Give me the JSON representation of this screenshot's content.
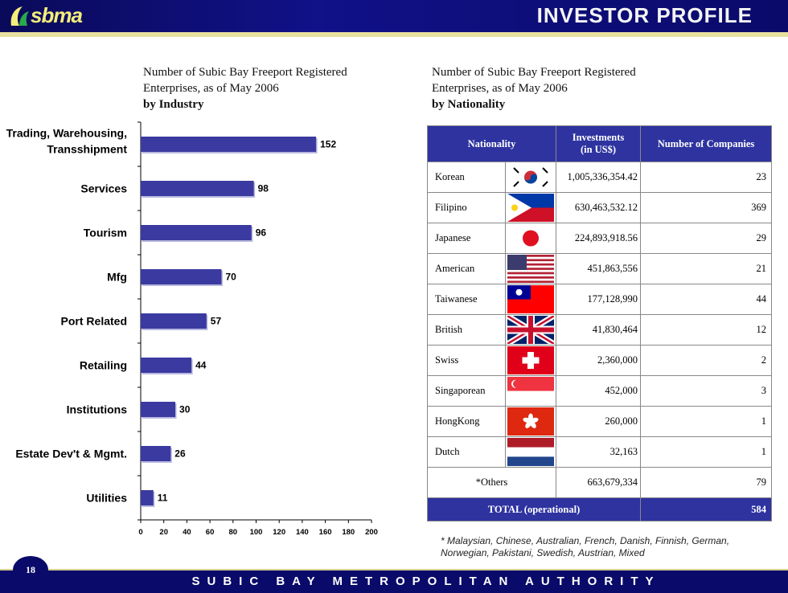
{
  "header": {
    "logo_text": "sbma",
    "title": "INVESTOR PROFILE",
    "accent_color": "#f4ee7a"
  },
  "left_panel": {
    "subtitle_line1": "Number of Subic Bay Freeport Registered",
    "subtitle_line2": "Enterprises, as of  May 2006",
    "subtitle_line3": "by Industry"
  },
  "right_panel": {
    "subtitle_line1": "Number of Subic Bay Freeport Registered",
    "subtitle_line2": "Enterprises, as of  May 2006",
    "subtitle_line3": "by Nationality"
  },
  "chart_data": {
    "type": "bar",
    "orientation": "horizontal",
    "categories": [
      "Trading, Warehousing, Transshipment",
      "Services",
      "Tourism",
      "Mfg",
      "Port Related",
      "Retailing",
      "Institutions",
      "Estate Dev't & Mgmt.",
      "Utilities"
    ],
    "category_lines": [
      [
        "Trading,  Warehousing,",
        "Transshipment"
      ],
      [
        "Services"
      ],
      [
        "Tourism"
      ],
      [
        "Mfg"
      ],
      [
        "Port  Related"
      ],
      [
        "Retailing"
      ],
      [
        "Institutions"
      ],
      [
        "Estate  Dev't  &  Mgmt."
      ],
      [
        "Utilities"
      ]
    ],
    "values": [
      152,
      98,
      96,
      70,
      57,
      44,
      30,
      26,
      11
    ],
    "xlim": [
      0,
      200
    ],
    "xticks": [
      0,
      20,
      40,
      60,
      80,
      100,
      120,
      140,
      160,
      180,
      200
    ],
    "bar_color": "#3a3aa0",
    "grid": false,
    "legend": "none"
  },
  "table": {
    "headers": {
      "nationality": "Nationality",
      "investments_line1": "Investments",
      "investments_line2": "(in US$)",
      "companies": "Number  of Companies"
    },
    "rows": [
      {
        "nationality": "Korean",
        "flag": "korea-flag",
        "investment": "1,005,336,354.42",
        "companies": "23"
      },
      {
        "nationality": "Filipino",
        "flag": "philippines-flag",
        "investment": "630,463,532.12",
        "companies": "369"
      },
      {
        "nationality": "Japanese",
        "flag": "japan-flag",
        "investment": "224,893,918.56",
        "companies": "29"
      },
      {
        "nationality": "American",
        "flag": "usa-flag",
        "investment": "451,863,556",
        "companies": "21"
      },
      {
        "nationality": "Taiwanese",
        "flag": "taiwan-flag",
        "investment": "177,128,990",
        "companies": "44"
      },
      {
        "nationality": "British",
        "flag": "uk-flag",
        "investment": "41,830,464",
        "companies": "12"
      },
      {
        "nationality": "Swiss",
        "flag": "swiss-flag",
        "investment": "2,360,000",
        "companies": "2"
      },
      {
        "nationality": "Singaporean",
        "flag": "singapore-flag",
        "investment": "452,000",
        "companies": "3"
      },
      {
        "nationality": "HongKong",
        "flag": "hongkong-flag",
        "investment": "260,000",
        "companies": "1"
      },
      {
        "nationality": "Dutch",
        "flag": "netherlands-flag",
        "investment": "32,163",
        "companies": "1"
      }
    ],
    "others": {
      "label": "*Others",
      "investment": "663,679,334",
      "companies": "79"
    },
    "total": {
      "label": "TOTAL (operational)",
      "companies": "584"
    },
    "header_color": "#2e33a0"
  },
  "footnote": "* Malaysian, Chinese, Australian, French, Danish, Finnish, German, Norwegian, Pakistani, Swedish, Austrian, Mixed",
  "footer": {
    "page_number": "18",
    "organization": "SUBIC BAY METROPOLITAN AUTHORITY"
  }
}
